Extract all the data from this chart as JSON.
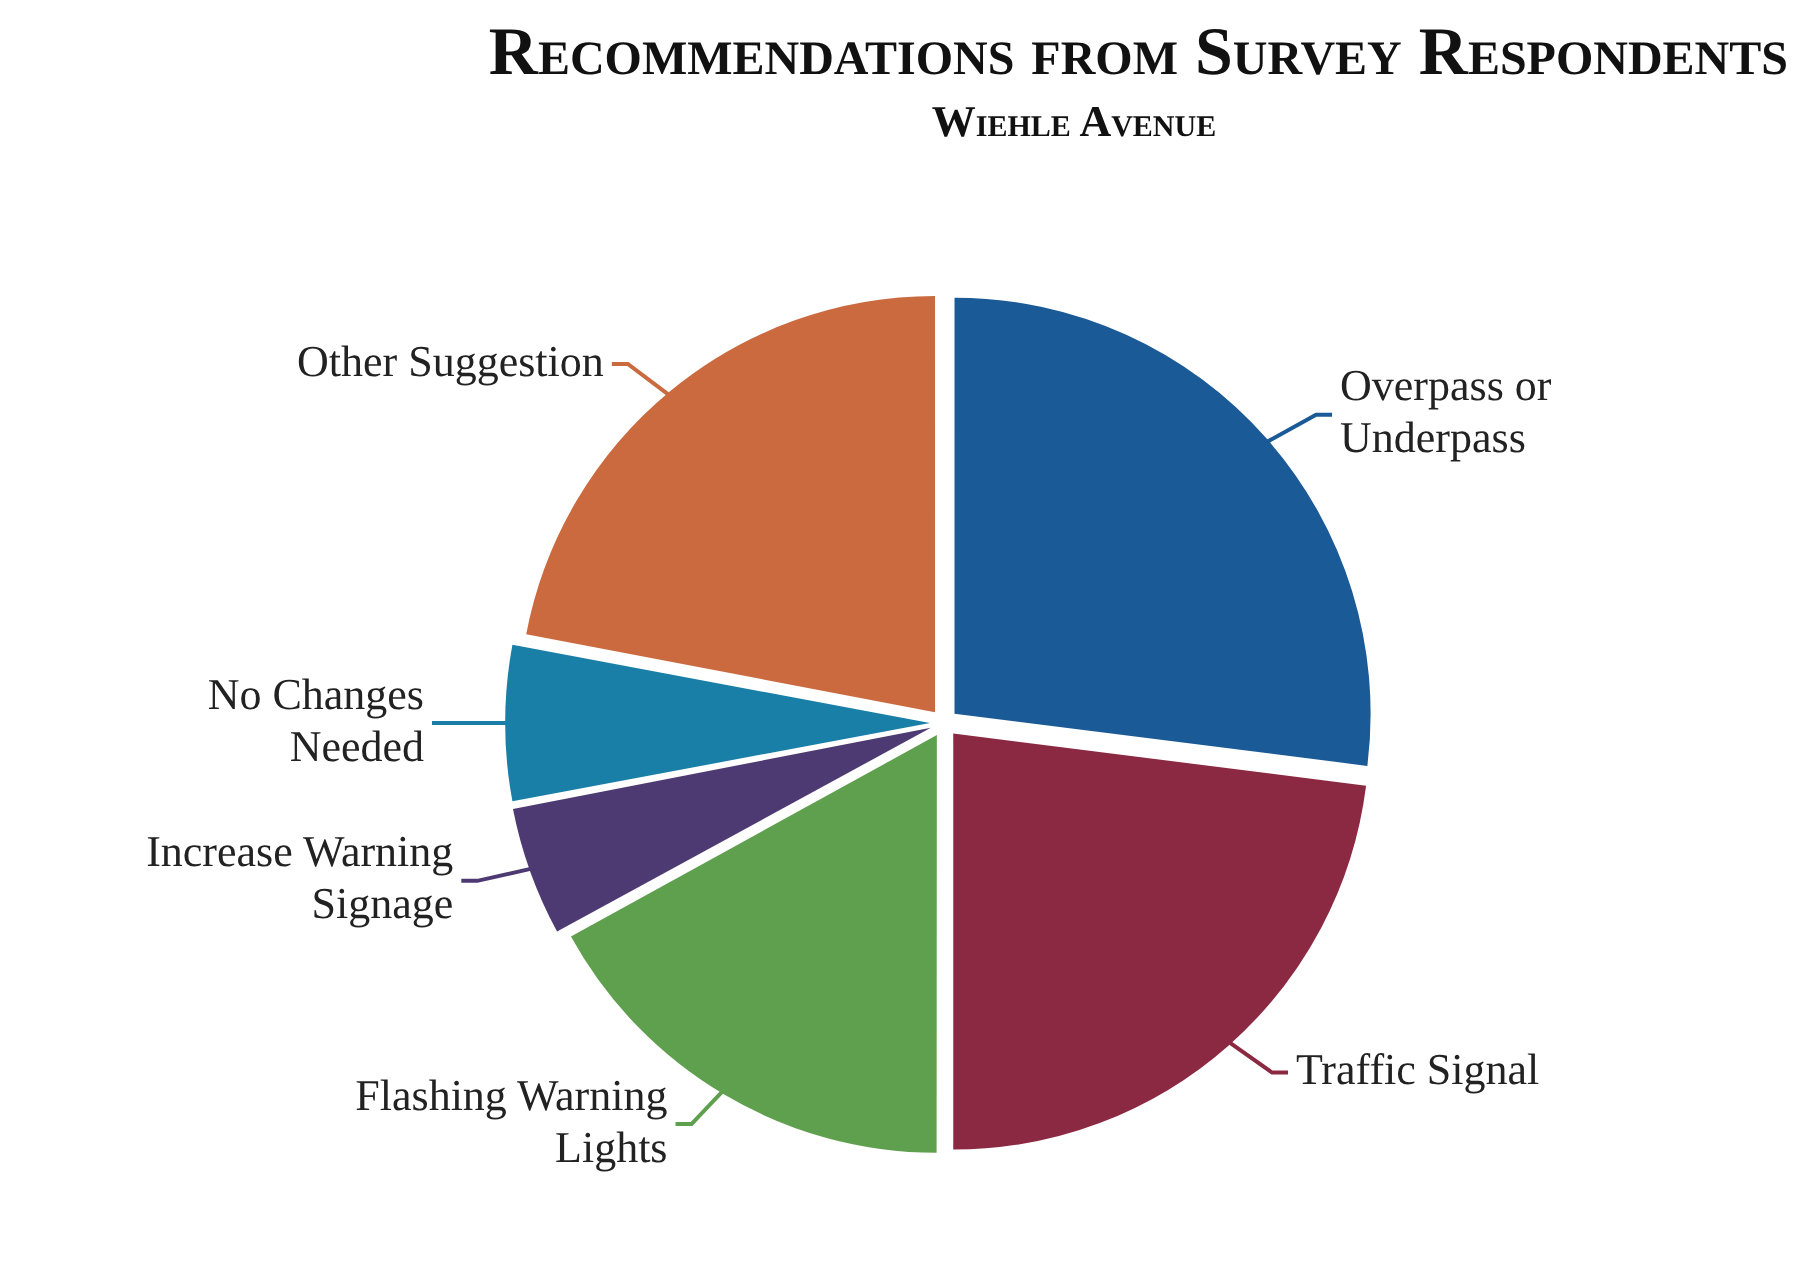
{
  "chart_data": {
    "type": "pie",
    "title": "Recommendations from Survey Respondents",
    "subtitle": "Wiehle Avenue",
    "categories": [
      "Overpass or Underpass",
      "Traffic Signal",
      "Flashing Warning Lights",
      "Increase Warning Signage",
      "No Changes Needed",
      "Other Suggestion"
    ],
    "values": [
      27,
      23,
      17,
      5,
      6,
      22
    ],
    "colors": [
      "#1a5a96",
      "#8b2942",
      "#5fa04e",
      "#4e3a72",
      "#1a7fa6",
      "#cc6a3f"
    ],
    "legend": false
  }
}
